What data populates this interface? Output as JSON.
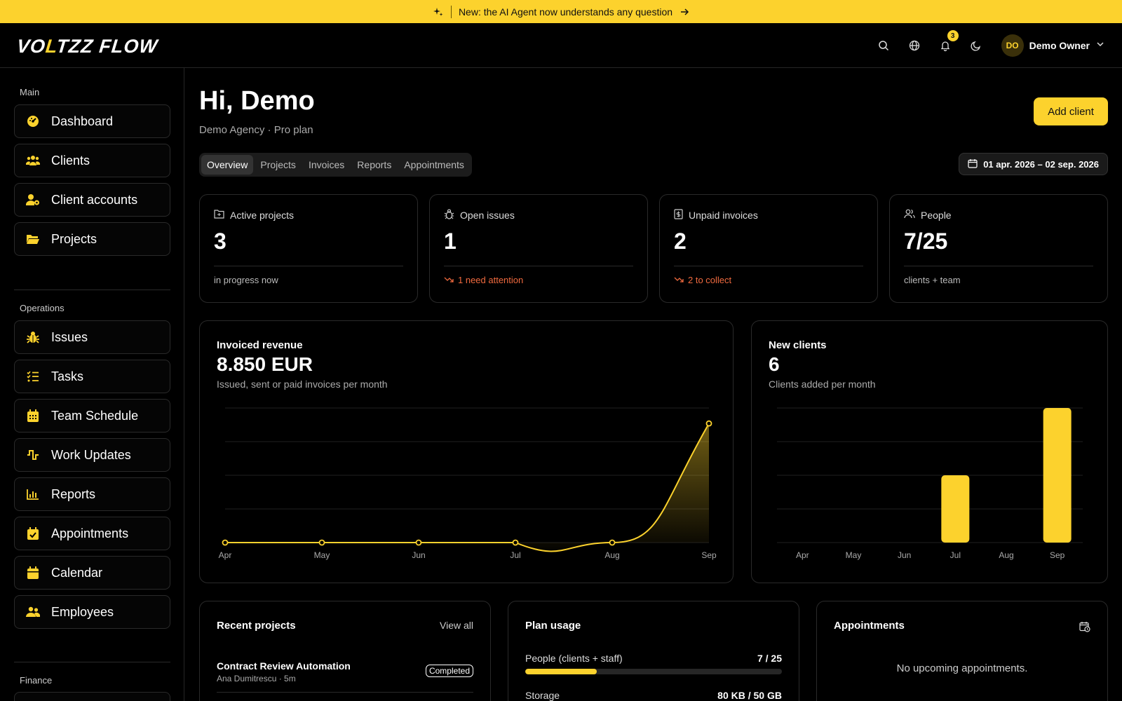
{
  "banner": {
    "text": "New: the AI Agent now understands any question"
  },
  "brand": {
    "logo_text": "VOLTZZ FLOW",
    "accent": "#fcd22d"
  },
  "topbar": {
    "notifications_count": "3",
    "user": {
      "initials": "DO",
      "name": "Demo Owner"
    }
  },
  "sidebar": {
    "sections": [
      {
        "label": "Main",
        "items": [
          {
            "label": "Dashboard",
            "icon": "dashboard-icon"
          },
          {
            "label": "Clients",
            "icon": "users-icon"
          },
          {
            "label": "Client accounts",
            "icon": "user-gear-icon"
          },
          {
            "label": "Projects",
            "icon": "folder-icon"
          }
        ]
      },
      {
        "label": "Operations",
        "items": [
          {
            "label": "Issues",
            "icon": "bug-icon"
          },
          {
            "label": "Tasks",
            "icon": "list-check-icon"
          },
          {
            "label": "Team Schedule",
            "icon": "calendar-grid-icon"
          },
          {
            "label": "Work Updates",
            "icon": "pulse-icon"
          },
          {
            "label": "Reports",
            "icon": "bar-chart-icon"
          },
          {
            "label": "Appointments",
            "icon": "calendar-check-icon"
          },
          {
            "label": "Calendar",
            "icon": "calendar-icon"
          },
          {
            "label": "Employees",
            "icon": "people-icon"
          }
        ]
      },
      {
        "label": "Finance",
        "items": []
      }
    ]
  },
  "header": {
    "greeting": "Hi, Demo",
    "subtitle": "Demo Agency · Pro plan",
    "add_button": "Add client",
    "tabs": [
      "Overview",
      "Projects",
      "Invoices",
      "Reports",
      "Appointments"
    ],
    "active_tab": "Overview",
    "date_range": "01 apr. 2026 – 02 sep. 2026"
  },
  "stats": [
    {
      "label": "Active projects",
      "value": "3",
      "foot": "in progress now",
      "icon": "folder-outline-icon"
    },
    {
      "label": "Open issues",
      "value": "1",
      "foot": "1 need attention",
      "icon": "bug-outline-icon"
    },
    {
      "label": "Unpaid invoices",
      "value": "2",
      "foot": "2 to collect",
      "icon": "invoice-icon"
    },
    {
      "label": "People",
      "value": "7/25",
      "foot": "clients + team",
      "icon": "people-outline-icon"
    }
  ],
  "revenue": {
    "title": "Invoiced revenue",
    "value": "8.850 EUR",
    "subtitle": "Issued, sent or paid invoices per month"
  },
  "new_clients": {
    "title": "New clients",
    "value": "6",
    "subtitle": "Clients added per month"
  },
  "chart_data": [
    {
      "type": "area",
      "categories": [
        "Apr",
        "May",
        "Jun",
        "Jul",
        "Aug",
        "Sep"
      ],
      "values": [
        0,
        0,
        0,
        0,
        0,
        8850
      ],
      "ylim": [
        0,
        10000
      ],
      "grid": true,
      "color": "#fcd22d"
    },
    {
      "type": "bar",
      "categories": [
        "Apr",
        "May",
        "Jun",
        "Jul",
        "Aug",
        "Sep"
      ],
      "values": [
        0,
        0,
        0,
        2,
        0,
        4
      ],
      "ylim": [
        0,
        4
      ],
      "grid": true,
      "color": "#fcd22d"
    }
  ],
  "recent_projects": {
    "title": "Recent projects",
    "view_all": "View all",
    "items": [
      {
        "name": "Contract Review Automation",
        "meta": "Ana Dumitrescu · 5m",
        "status": "Completed"
      }
    ]
  },
  "plan_usage": {
    "title": "Plan usage",
    "rows": [
      {
        "label": "People (clients + staff)",
        "value": "7 / 25",
        "fraction": 0.28
      },
      {
        "label": "Storage",
        "value": "80 KB / 50 GB"
      }
    ]
  },
  "appointments": {
    "title": "Appointments",
    "empty": "No upcoming appointments."
  }
}
